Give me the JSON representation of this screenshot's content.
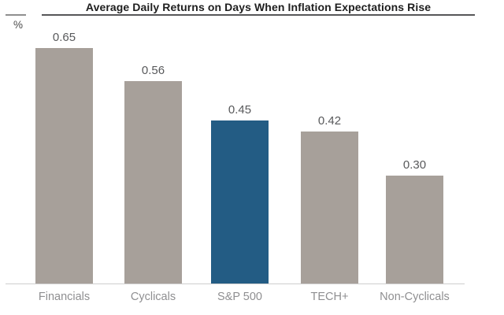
{
  "header": {
    "title": "Average Daily Returns on Days When Inflation Expectations Rise",
    "y_unit_label": "%"
  },
  "chart_data": {
    "type": "bar",
    "title": "Average Daily Returns on Days When Inflation Expectations Rise",
    "xlabel": "",
    "ylabel": "%",
    "categories": [
      "Financials",
      "Cyclicals",
      "S&P 500",
      "TECH+",
      "Non-Cyclicals"
    ],
    "values": [
      0.65,
      0.56,
      0.45,
      0.42,
      0.3
    ],
    "value_labels": [
      "0.65",
      "0.56",
      "0.45",
      "0.42",
      "0.30"
    ],
    "ylim": [
      0,
      0.72
    ],
    "grid": false,
    "legend": false,
    "highlight_index": 2,
    "highlight_category": "S&P 500",
    "colors": {
      "bar_default": "#a7a09a",
      "bar_highlight": "#235c84",
      "value_label": "#58595b",
      "category_label": "#8f8f91",
      "title_text": "#1e1e1e",
      "title_rule": "#565658",
      "baseline": "#cdcdcd",
      "background": "#ffffff"
    }
  }
}
